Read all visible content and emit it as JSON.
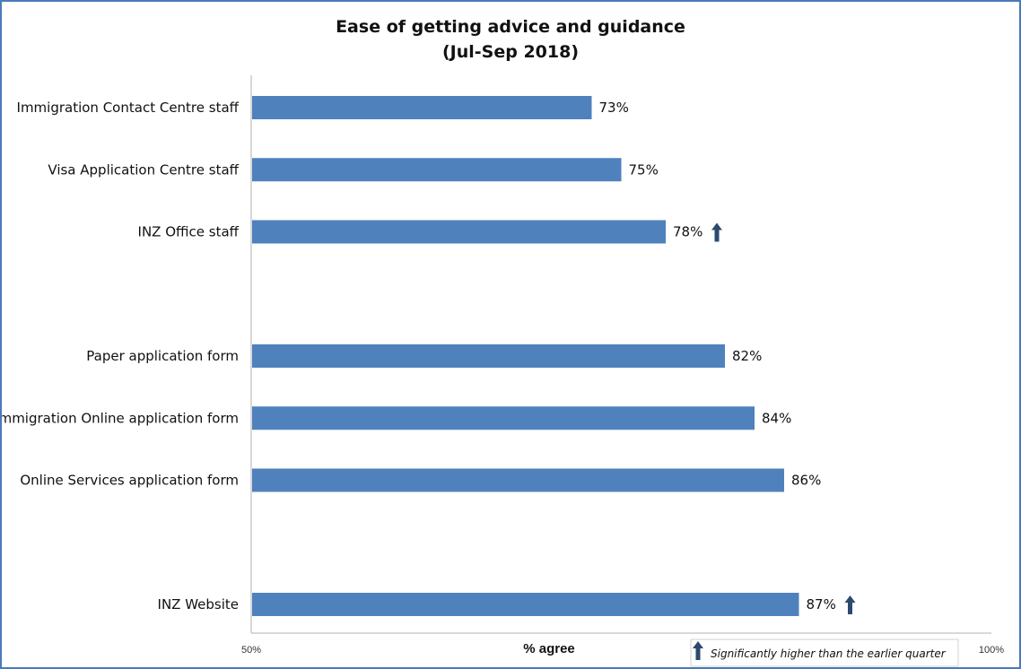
{
  "chart_data": {
    "type": "bar",
    "orientation": "horizontal",
    "title": "Ease of getting advice and guidance",
    "subtitle": "(Jul-Sep 2018)",
    "xlabel": "% agree",
    "ylabel": "",
    "xlim": [
      50,
      100
    ],
    "tick_labels": [
      "50%",
      "100%"
    ],
    "grid": false,
    "bar_color": "#4f81bd",
    "arrow_color": "#2b4a6f",
    "categories": [
      "Immigration Contact Centre staff",
      "Visa Application Centre staff",
      "INZ Office staff",
      "Paper application form",
      "Immigration Online application form",
      "Online Services application form",
      "INZ Website"
    ],
    "groups": [
      0,
      0,
      0,
      1,
      1,
      1,
      2
    ],
    "values": [
      73,
      75,
      78,
      82,
      84,
      86,
      87
    ],
    "value_labels": [
      "73%",
      "75%",
      "78%",
      "82%",
      "84%",
      "86%",
      "87%"
    ],
    "significantly_higher": [
      false,
      false,
      true,
      false,
      false,
      false,
      true
    ],
    "legend": {
      "icon": "up-arrow-icon",
      "label": "Significantly higher than the earlier quarter",
      "placement": "bottom-right"
    }
  }
}
